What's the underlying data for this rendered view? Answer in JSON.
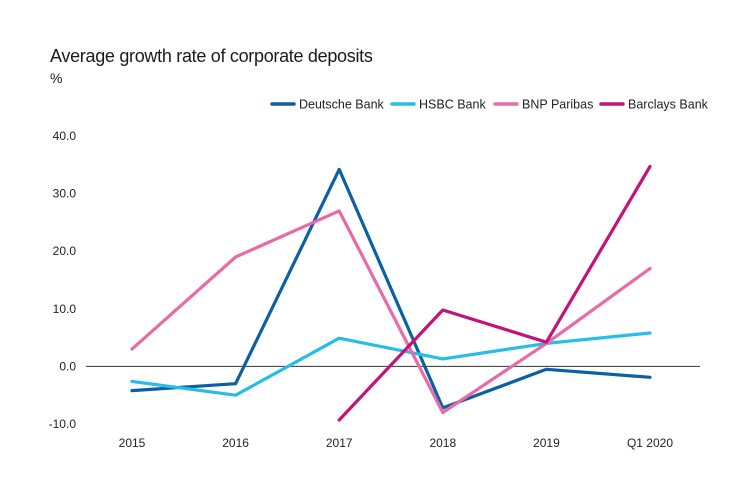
{
  "chart_data": {
    "type": "line",
    "title": "Average growth rate of corporate deposits",
    "unit": "%",
    "categories": [
      "2015",
      "2016",
      "2017",
      "2018",
      "2019",
      "Q1 2020"
    ],
    "y_ticks": [
      "40.0",
      "30.0",
      "20.0",
      "10.0",
      "0.0",
      "-10.0"
    ],
    "y_tick_values": [
      40,
      30,
      20,
      10,
      0,
      -10
    ],
    "ylim": [
      -10,
      40
    ],
    "legend_position": "top-right",
    "series": [
      {
        "name": "Deutsche Bank",
        "color": "#0b5fa5",
        "values": [
          -4.2,
          -3.0,
          34.2,
          -7.2,
          -0.5,
          -1.9
        ]
      },
      {
        "name": "HSBC Bank",
        "color": "#27bde8",
        "values": [
          -2.6,
          -5.0,
          4.9,
          1.3,
          4.0,
          5.8
        ]
      },
      {
        "name": "BNP Paribas",
        "color": "#e86ba8",
        "values": [
          3.0,
          19.0,
          27.0,
          -8.0,
          4.0,
          17.0
        ]
      },
      {
        "name": "Barclays Bank",
        "color": "#c4127a",
        "values": [
          null,
          null,
          -9.3,
          9.8,
          4.2,
          34.7
        ]
      }
    ]
  }
}
